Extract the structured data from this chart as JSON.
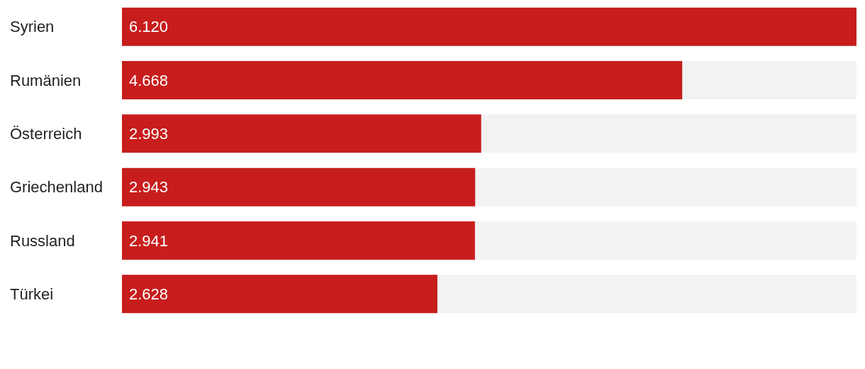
{
  "chart_data": {
    "type": "bar",
    "orientation": "horizontal",
    "categories": [
      "Syrien",
      "Rumänien",
      "Österreich",
      "Griechenland",
      "Russland",
      "Türkei"
    ],
    "values": [
      6120,
      4668,
      2993,
      2943,
      2941,
      2628
    ],
    "value_labels": [
      "6.120",
      "4.668",
      "2.993",
      "2.943",
      "2.941",
      "2.628"
    ],
    "color": "#c71d1d",
    "tick_labels": "y",
    "grid": false
  }
}
